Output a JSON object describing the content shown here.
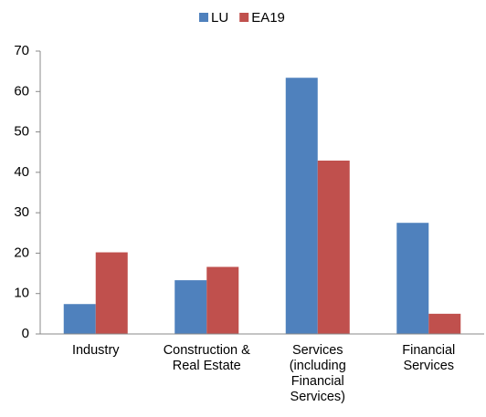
{
  "chart_data": {
    "type": "bar",
    "categories": [
      "Industry",
      "Construction & Real Estate",
      "Services (including Financial Services)",
      "Financial Services"
    ],
    "series": [
      {
        "name": "LU",
        "color": "#4f81bd",
        "values": [
          7.4,
          13.3,
          63.4,
          27.5
        ]
      },
      {
        "name": "EA19",
        "color": "#c0504d",
        "values": [
          20.2,
          16.6,
          42.9,
          5.0
        ]
      }
    ],
    "ylim": [
      0,
      70
    ],
    "yticks": [
      0,
      10,
      20,
      30,
      40,
      50,
      60,
      70
    ],
    "grid": false,
    "legend": "top"
  }
}
